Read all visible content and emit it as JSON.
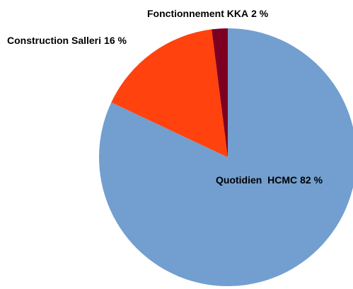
{
  "chart_data": {
    "type": "pie",
    "categories": [
      "Quotidien  HCMC",
      "Construction Salleri",
      "Fonctionnement KKA"
    ],
    "values": [
      82,
      16,
      2
    ],
    "value_labels": [
      "82 %",
      "16 %",
      "2 %"
    ],
    "colors": [
      "#729fcf",
      "#ff420e",
      "#7e0021"
    ]
  }
}
